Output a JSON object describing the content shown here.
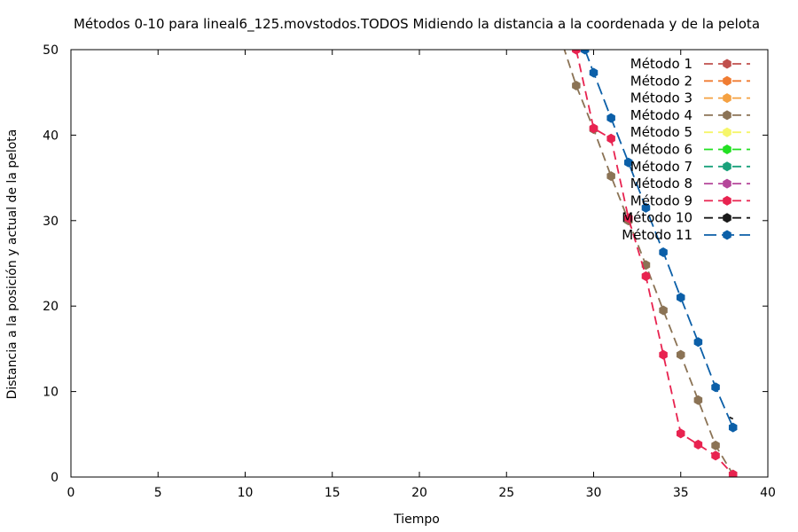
{
  "chart_data": {
    "type": "line",
    "title": "Métodos 0-10 para lineal6_125.movstodos.TODOS Midiendo la distancia a la coordenada y de la pelota",
    "xlabel": "Tiempo",
    "ylabel": "Distancia a la posición y actual de la pelota",
    "xlim": [
      0,
      40
    ],
    "ylim": [
      0,
      50
    ],
    "xticks": [
      0,
      5,
      10,
      15,
      20,
      25,
      30,
      35,
      40
    ],
    "yticks": [
      0,
      10,
      20,
      30,
      40,
      50
    ],
    "grid": false,
    "legend_position": "top-right",
    "series": [
      {
        "name": "Método 1",
        "color": "#c0504d",
        "dash": "10,6",
        "points": []
      },
      {
        "name": "Método 2",
        "color": "#f07c32",
        "dash": "10,6",
        "points": []
      },
      {
        "name": "Método 3",
        "color": "#f5a142",
        "dash": "10,6",
        "points": []
      },
      {
        "name": "Método 4",
        "color": "#8b7355",
        "dash": "10,6",
        "points": [
          [
            28,
            52
          ],
          [
            29,
            45.8
          ],
          [
            30,
            40.7
          ],
          [
            31,
            35.2
          ],
          [
            32,
            30
          ],
          [
            33,
            24.8
          ],
          [
            34,
            19.5
          ],
          [
            35,
            14.3
          ],
          [
            36,
            9
          ],
          [
            37,
            3.7
          ],
          [
            38,
            0.3
          ]
        ]
      },
      {
        "name": "Método 5",
        "color": "#f6f66a",
        "dash": "10,6",
        "points": []
      },
      {
        "name": "Método 6",
        "color": "#22e022",
        "dash": "10,6",
        "points": []
      },
      {
        "name": "Método 7",
        "color": "#1aa17b",
        "dash": "10,6",
        "points": []
      },
      {
        "name": "Método 8",
        "color": "#b5479a",
        "dash": "10,6",
        "points": []
      },
      {
        "name": "Método 9",
        "color": "#e82350",
        "dash": "10,6",
        "points": [
          [
            29,
            50
          ],
          [
            30,
            40.8
          ],
          [
            31,
            39.6
          ],
          [
            32,
            30.3
          ],
          [
            33,
            23.5
          ],
          [
            34,
            14.3
          ],
          [
            35,
            5.1
          ],
          [
            36,
            3.8
          ],
          [
            37,
            2.5
          ],
          [
            38,
            0.3
          ]
        ]
      },
      {
        "name": "Método 10",
        "color": "#1a1a1a",
        "dash": "10,6",
        "points": [
          [
            37.8,
            7
          ],
          [
            38,
            6.8
          ]
        ]
      },
      {
        "name": "Método 11",
        "color": "#0b5fa8",
        "dash": "14,6",
        "points": [
          [
            29.5,
            50
          ],
          [
            30,
            47.3
          ],
          [
            31,
            42
          ],
          [
            32,
            36.8
          ],
          [
            33,
            31.5
          ],
          [
            34,
            26.3
          ],
          [
            35,
            21
          ],
          [
            36,
            15.8
          ],
          [
            37,
            10.5
          ],
          [
            38,
            5.8
          ]
        ]
      }
    ]
  }
}
